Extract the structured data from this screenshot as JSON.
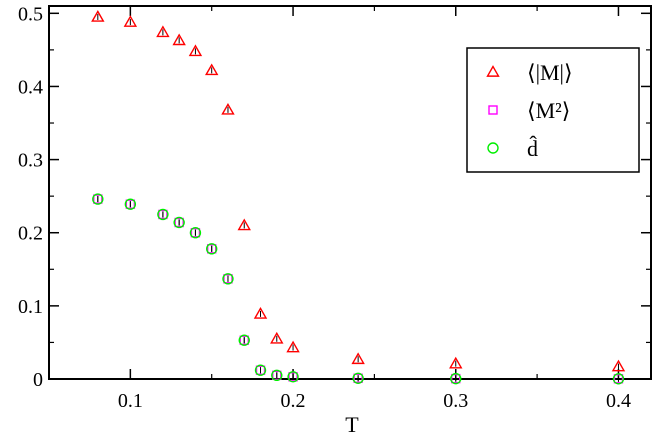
{
  "chart_data": {
    "type": "scatter",
    "xlabel": "T",
    "ylabel": "",
    "title": "",
    "xlim": [
      0.05,
      0.42
    ],
    "ylim": [
      0,
      0.51
    ],
    "xticks": [
      0.1,
      0.2,
      0.3,
      0.4
    ],
    "xtick_labels": [
      "0.1",
      "0.2",
      "0.3",
      "0.4"
    ],
    "yticks": [
      0,
      0.1,
      0.2,
      0.3,
      0.4,
      0.5
    ],
    "ytick_labels": [
      "0",
      "0.1",
      "0.2",
      "0.3",
      "0.4",
      "0.5"
    ],
    "grid": false,
    "legend_position": "top-right",
    "series": [
      {
        "name": "⟨|M|⟩",
        "marker": "triangle",
        "color": "#ff0000",
        "x": [
          0.08,
          0.1,
          0.12,
          0.13,
          0.14,
          0.15,
          0.16,
          0.17,
          0.18,
          0.19,
          0.2,
          0.24,
          0.3,
          0.4
        ],
        "y": [
          0.495,
          0.488,
          0.474,
          0.463,
          0.448,
          0.422,
          0.368,
          0.21,
          0.089,
          0.055,
          0.043,
          0.027,
          0.021,
          0.017
        ]
      },
      {
        "name": "⟨M²⟩",
        "marker": "square",
        "color": "#ff00ff",
        "x": [
          0.08,
          0.1,
          0.12,
          0.13,
          0.14,
          0.15,
          0.16,
          0.17,
          0.18,
          0.19,
          0.2,
          0.24,
          0.3,
          0.4
        ],
        "y": [
          0.246,
          0.239,
          0.225,
          0.214,
          0.2,
          0.178,
          0.137,
          0.053,
          0.012,
          0.005,
          0.003,
          0.001,
          0.0005,
          0.0003
        ]
      },
      {
        "name": "d̂",
        "marker": "circle",
        "color": "#00ee00",
        "x": [
          0.08,
          0.1,
          0.12,
          0.13,
          0.14,
          0.15,
          0.16,
          0.17,
          0.18,
          0.19,
          0.2,
          0.24,
          0.3,
          0.4
        ],
        "y": [
          0.246,
          0.239,
          0.225,
          0.214,
          0.2,
          0.178,
          0.137,
          0.053,
          0.012,
          0.005,
          0.003,
          0.001,
          0.0005,
          0.0003
        ]
      }
    ]
  }
}
